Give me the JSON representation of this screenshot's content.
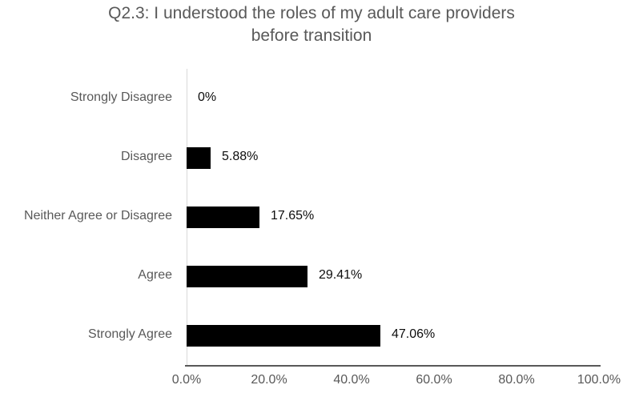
{
  "title_lines": [
    "Q2.3: I understood the roles of my adult care providers",
    "before transition"
  ],
  "chart_data": {
    "type": "bar",
    "orientation": "horizontal",
    "title": "Q2.3: I understood the roles of my adult care providers before transition",
    "categories": [
      "Strongly Disagree",
      "Disagree",
      "Neither Agree or Disagree",
      "Agree",
      "Strongly Agree"
    ],
    "values": [
      0,
      5.88,
      17.65,
      29.41,
      47.06
    ],
    "value_labels": [
      "0%",
      "5.88%",
      "17.65%",
      "29.41%",
      "47.06%"
    ],
    "x_tick_labels": [
      "0.0%",
      "20.0%",
      "40.0%",
      "60.0%",
      "80.0%",
      "100.0%"
    ],
    "x_tick_values": [
      0,
      20,
      40,
      60,
      80,
      100
    ],
    "xlim": [
      0,
      100
    ],
    "grid": false,
    "legend": false,
    "bar_color": "#000000",
    "title_color": "#595959",
    "axis_text_color": "#595959",
    "value_label_color": "#0d0d0d",
    "category_axis_line_color": "#d9d9d9",
    "x_axis_line_color": "#595959",
    "background_color": "#ffffff"
  }
}
